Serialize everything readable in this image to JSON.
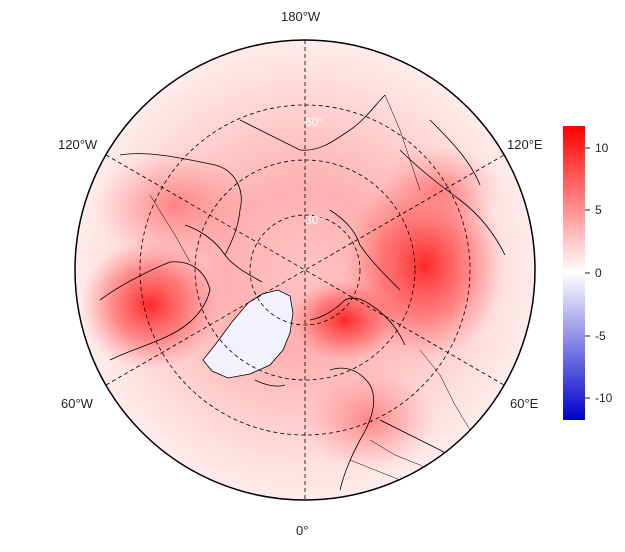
{
  "map": {
    "lon_labels": {
      "top": "180°W",
      "bottom": "0°",
      "upper_left": "120°W",
      "upper_right": "120°E",
      "lower_left": "60°W",
      "lower_right": "60°E"
    },
    "lat_labels": [
      "30°",
      "60°"
    ],
    "projection": "north-polar-stereographic",
    "graticule": "dashed",
    "colors": {
      "positive": "#ff0000",
      "zero": "#ffffff",
      "negative": "#0000cc",
      "outline": "#000000"
    }
  },
  "colorbar": {
    "min": -12,
    "max": 12,
    "ticks": [
      "10",
      "5",
      "0",
      "-5",
      "-10"
    ]
  }
}
